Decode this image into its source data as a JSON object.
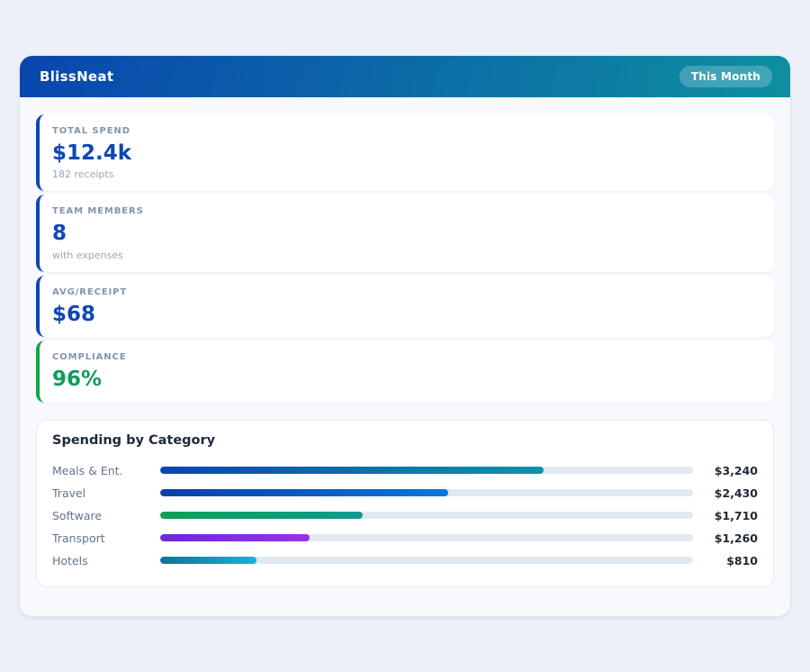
{
  "app": {
    "title": "BlissNeat",
    "period_badge": "This Month"
  },
  "colors": {
    "page_bg": "#edf1f7",
    "panel_bg": "#f7f9fc",
    "header_gradient_start": "#0a46ae",
    "header_gradient_end": "#0e8fa0",
    "stat_blue": "#0d47b5",
    "stat_green": "#0f9b5e",
    "accent_green_border": "#16a34a",
    "bar_track": "#e2e8f0"
  },
  "stats": [
    {
      "label": "TOTAL SPEND",
      "value": "$12.4k",
      "sub": "182 receipts",
      "accent": "#0d47b5",
      "value_color": "#0d47b5"
    },
    {
      "label": "TEAM MEMBERS",
      "value": "8",
      "sub": "with expenses",
      "accent": "#0d47b5",
      "value_color": "#0d47b5"
    },
    {
      "label": "AVG/RECEIPT",
      "value": "$68",
      "sub": "",
      "accent": "#0d47b5",
      "value_color": "#0d47b5"
    },
    {
      "label": "COMPLIANCE",
      "value": "96%",
      "sub": "",
      "accent": "#16a34a",
      "value_color": "#0f9b5e"
    }
  ],
  "chart_data": {
    "type": "bar",
    "orientation": "horizontal",
    "title": "Spending by Category",
    "categories": [
      "Meals & Ent.",
      "Travel",
      "Software",
      "Transport",
      "Hotels"
    ],
    "values": [
      3240,
      2430,
      1710,
      1260,
      810
    ],
    "value_labels": [
      "$3,240",
      "$2,430",
      "$1,710",
      "$1,260",
      "$810"
    ],
    "xlim": [
      0,
      4500
    ],
    "percent_widths": [
      72,
      54,
      38,
      28,
      18
    ],
    "grid": false,
    "legend": false,
    "bar_gradients": [
      [
        "#0a46ae",
        "#0e93a8"
      ],
      [
        "#0b3fa8",
        "#0877d8"
      ],
      [
        "#0e9f54",
        "#12998f"
      ],
      [
        "#6d28d9",
        "#9b30e8"
      ],
      [
        "#0c7490",
        "#11b8d4"
      ]
    ],
    "track_color": "#e2e8f0"
  }
}
